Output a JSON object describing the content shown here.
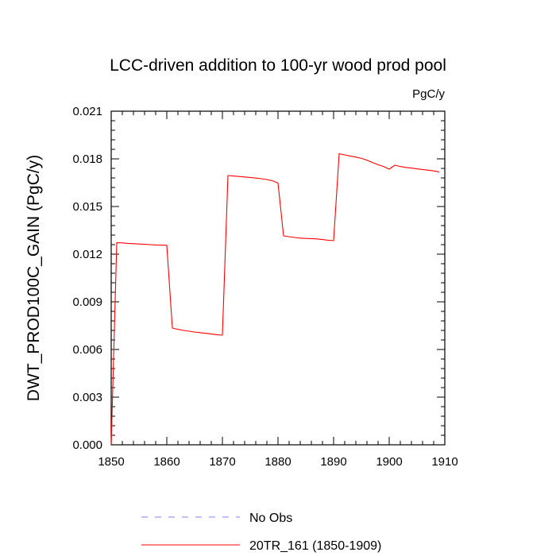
{
  "chart_data": {
    "type": "line",
    "title": "LCC-driven addition to 100-yr wood prod pool",
    "units": "PgC/y",
    "xlabel": "",
    "ylabel": "DWT_PROD100C_GAIN  (PgC/y)",
    "xlim": [
      1850,
      1910
    ],
    "ylim": [
      0.0,
      0.021
    ],
    "x_ticks": [
      1850,
      1860,
      1870,
      1880,
      1890,
      1900,
      1910
    ],
    "x_tick_labels": [
      "1850",
      "1860",
      "1870",
      "1880",
      "1890",
      "1900",
      "1910"
    ],
    "y_ticks": [
      0.0,
      0.003,
      0.006,
      0.009,
      0.012,
      0.015,
      0.018,
      0.021
    ],
    "y_tick_labels": [
      "0.000",
      "0.003",
      "0.006",
      "0.009",
      "0.012",
      "0.015",
      "0.018",
      "0.021"
    ],
    "grid": false,
    "legend_position": "bottom",
    "series": [
      {
        "name": "No Obs",
        "color": "#8080ff",
        "dash": true,
        "x": [],
        "y": []
      },
      {
        "name": "20TR_161 (1850-1909)",
        "color": "#ff0000",
        "dash": false,
        "x": [
          1850,
          1851,
          1852,
          1853,
          1854,
          1855,
          1856,
          1857,
          1858,
          1859,
          1860,
          1861,
          1862,
          1863,
          1864,
          1865,
          1866,
          1867,
          1868,
          1869,
          1870,
          1871,
          1872,
          1873,
          1874,
          1875,
          1876,
          1877,
          1878,
          1879,
          1880,
          1881,
          1882,
          1883,
          1884,
          1885,
          1886,
          1887,
          1888,
          1889,
          1890,
          1891,
          1892,
          1893,
          1894,
          1895,
          1896,
          1897,
          1898,
          1899,
          1900,
          1901,
          1902,
          1903,
          1904,
          1905,
          1906,
          1907,
          1908,
          1909
        ],
        "y": [
          0.0,
          0.01272,
          0.01271,
          0.01268,
          0.01266,
          0.01264,
          0.01262,
          0.0126,
          0.01258,
          0.01257,
          0.01256,
          0.00735,
          0.00727,
          0.0072,
          0.00715,
          0.0071,
          0.00706,
          0.00702,
          0.00698,
          0.00693,
          0.0069,
          0.01695,
          0.01692,
          0.01689,
          0.01686,
          0.01683,
          0.01679,
          0.01675,
          0.0167,
          0.01662,
          0.01648,
          0.01315,
          0.0131,
          0.01305,
          0.01301,
          0.01299,
          0.01298,
          0.01296,
          0.01292,
          0.01288,
          0.01285,
          0.01832,
          0.01825,
          0.01818,
          0.01811,
          0.01803,
          0.01792,
          0.01777,
          0.01763,
          0.01752,
          0.01735,
          0.0176,
          0.01752,
          0.01746,
          0.01742,
          0.01737,
          0.01733,
          0.01729,
          0.01724,
          0.01718
        ]
      }
    ]
  }
}
